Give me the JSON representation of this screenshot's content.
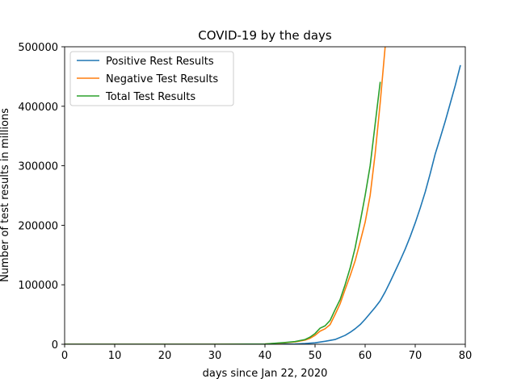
{
  "chart_data": {
    "type": "line",
    "title": "COVID-19 by the days",
    "xlabel": "days since Jan 22, 2020",
    "ylabel": "Number of test results in millions",
    "xlim": [
      0,
      80
    ],
    "ylim": [
      0,
      500000
    ],
    "xticks": [
      0,
      10,
      20,
      30,
      40,
      50,
      60,
      70,
      80
    ],
    "yticks": [
      0,
      100000,
      200000,
      300000,
      400000,
      500000
    ],
    "grid": false,
    "legend_position": "upper-left",
    "series": [
      {
        "name": "Positive Rest Results",
        "color": "#1f77b4",
        "x": [
          0,
          10,
          20,
          30,
          40,
          44,
          46,
          48,
          50,
          52,
          54,
          56,
          57,
          58,
          59,
          60,
          61,
          62,
          63,
          64,
          65,
          66,
          67,
          68,
          69,
          70,
          71,
          72,
          73,
          74,
          75,
          76,
          77,
          78,
          79
        ],
        "y": [
          0,
          0,
          0,
          0,
          0,
          200,
          500,
          1200,
          2500,
          5000,
          8000,
          15000,
          20000,
          26000,
          33000,
          42000,
          52000,
          62000,
          73000,
          88000,
          105000,
          123000,
          141000,
          160000,
          181000,
          204000,
          229000,
          256000,
          287000,
          320000,
          347000,
          375000,
          405000,
          435000,
          468000
        ]
      },
      {
        "name": "Negative Test Results",
        "color": "#ff7f0e",
        "x": [
          0,
          10,
          20,
          30,
          40,
          44,
          46,
          48,
          49,
          50,
          51,
          52,
          53,
          54,
          55,
          56,
          57,
          58,
          59,
          60,
          61,
          62,
          63,
          64
        ],
        "y": [
          0,
          0,
          0,
          0,
          500,
          2500,
          4000,
          7000,
          10000,
          15000,
          22000,
          26000,
          33000,
          50000,
          68000,
          92000,
          115000,
          140000,
          172000,
          205000,
          250000,
          320000,
          405000,
          500000
        ]
      },
      {
        "name": "Total Test Results",
        "color": "#2ca02c",
        "x": [
          0,
          10,
          20,
          30,
          40,
          44,
          46,
          48,
          49,
          50,
          51,
          52,
          53,
          54,
          55,
          56,
          57,
          58,
          59,
          60,
          61,
          62,
          63
        ],
        "y": [
          0,
          0,
          0,
          0,
          500,
          3000,
          4500,
          8000,
          12000,
          18000,
          27000,
          31000,
          40000,
          58000,
          75000,
          100000,
          128000,
          162000,
          205000,
          250000,
          300000,
          370000,
          440000
        ]
      }
    ]
  }
}
